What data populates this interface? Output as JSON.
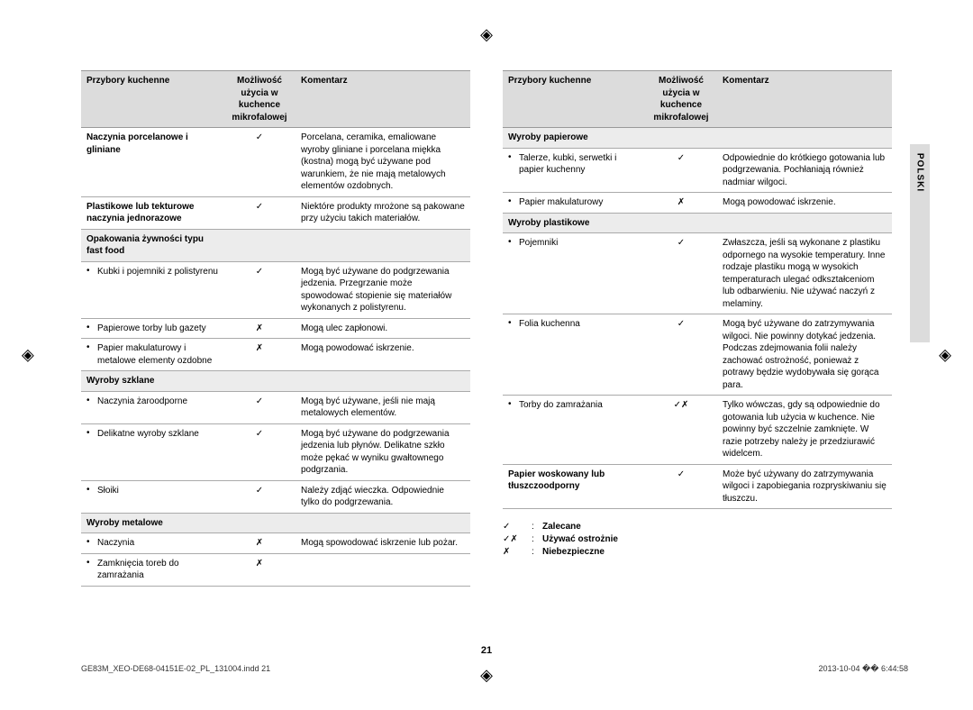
{
  "headers": {
    "c1": "Przybory kuchenne",
    "c2": "Możliwość użycia w kuchence mikrofalowej",
    "c3": "Komentarz"
  },
  "symbols": {
    "yes": "✓",
    "no": "✗",
    "caution": "✓✗"
  },
  "left": [
    {
      "type": "row",
      "c1": "Naczynia porcelanowe i gliniane",
      "bold": true,
      "c2": "yes",
      "c3": "Porcelana, ceramika, emaliowane wyroby gliniane i porcelana miękka (kostna) mogą być używane pod warunkiem, że nie mają metalowych elementów ozdobnych."
    },
    {
      "type": "row",
      "c1": "Plastikowe lub tekturowe naczynia jednorazowe",
      "bold": true,
      "c2": "yes",
      "c3": "Niektóre produkty mrożone są pakowane przy użyciu takich materiałów."
    },
    {
      "type": "header",
      "c1": "Opakowania żywności typu fast food"
    },
    {
      "type": "row",
      "bullet": true,
      "c1": "Kubki i pojemniki z polistyrenu",
      "c2": "yes",
      "c3": "Mogą być używane do podgrzewania jedzenia. Przegrzanie może spowodować stopienie się materiałów wykonanych z polistyrenu."
    },
    {
      "type": "row",
      "bullet": true,
      "c1": "Papierowe torby lub gazety",
      "c2": "no",
      "c3": "Mogą ulec zapłonowi."
    },
    {
      "type": "row",
      "bullet": true,
      "c1": "Papier makulaturowy i metalowe elementy ozdobne",
      "c2": "no",
      "c3": "Mogą powodować iskrzenie."
    },
    {
      "type": "header",
      "c1": "Wyroby szklane"
    },
    {
      "type": "row",
      "bullet": true,
      "c1": "Naczynia żaroodporne",
      "c2": "yes",
      "c3": "Mogą być używane, jeśli nie mają metalowych elementów."
    },
    {
      "type": "row",
      "bullet": true,
      "c1": "Delikatne wyroby szklane",
      "c2": "yes",
      "c3": "Mogą być używane do podgrzewania jedzenia lub płynów. Delikatne szkło może pękać w wyniku gwałtownego podgrzania."
    },
    {
      "type": "row",
      "bullet": true,
      "c1": "Słoiki",
      "c2": "yes",
      "c3": "Należy zdjąć wieczka. Odpowiednie tylko do podgrzewania."
    },
    {
      "type": "header",
      "c1": "Wyroby metalowe"
    },
    {
      "type": "row",
      "bullet": true,
      "c1": "Naczynia",
      "c2": "no",
      "c3": "Mogą spowodować iskrzenie lub pożar."
    },
    {
      "type": "row",
      "bullet": true,
      "c1": "Zamknięcia toreb do zamrażania",
      "c2": "no",
      "c3": ""
    }
  ],
  "right": [
    {
      "type": "header",
      "c1": "Wyroby papierowe"
    },
    {
      "type": "row",
      "bullet": true,
      "c1": "Talerze, kubki, serwetki i papier kuchenny",
      "c2": "yes",
      "c3": "Odpowiednie do krótkiego gotowania lub podgrzewania. Pochłaniają również nadmiar wilgoci."
    },
    {
      "type": "row",
      "bullet": true,
      "c1": "Papier makulaturowy",
      "c2": "no",
      "c3": "Mogą powodować iskrzenie."
    },
    {
      "type": "header",
      "c1": "Wyroby plastikowe"
    },
    {
      "type": "row",
      "bullet": true,
      "c1": "Pojemniki",
      "c2": "yes",
      "c3": "Zwłaszcza, jeśli są wykonane z plastiku odpornego na wysokie temperatury. Inne rodzaje plastiku mogą w wysokich temperaturach ulegać odkształceniom lub odbarwieniu. Nie używać naczyń z melaminy."
    },
    {
      "type": "row",
      "bullet": true,
      "c1": "Folia kuchenna",
      "c2": "yes",
      "c3": "Mogą być używane do zatrzymywania wilgoci. Nie powinny dotykać jedzenia. Podczas zdejmowania folii należy zachować ostrożność, ponieważ z potrawy będzie wydobywała się gorąca para."
    },
    {
      "type": "row",
      "bullet": true,
      "c1": "Torby do zamrażania",
      "c2": "caution",
      "c3": "Tylko wówczas, gdy są odpowiednie do gotowania lub użycia w kuchence. Nie powinny być szczelnie zamknięte. W razie potrzeby należy je przedziurawić widelcem."
    },
    {
      "type": "row",
      "c1": "Papier woskowany lub tłuszczoodporny",
      "bold": true,
      "c2": "yes",
      "c3": "Może być używany do zatrzymywania wilgoci i zapobiegania rozpryskiwaniu się tłuszczu."
    }
  ],
  "legend": [
    {
      "sym": "✓",
      "label": "Zalecane"
    },
    {
      "sym": "✓✗",
      "label": "Używać ostrożnie"
    },
    {
      "sym": "✗",
      "label": "Niebezpieczne"
    }
  ],
  "sideTab": "POLSKI",
  "pageNumber": "21",
  "footer": {
    "left": "GE83M_XEO-DE68-04151E-02_PL_131004.indd   21",
    "right": "2013-10-04   �� 6:44:58"
  }
}
